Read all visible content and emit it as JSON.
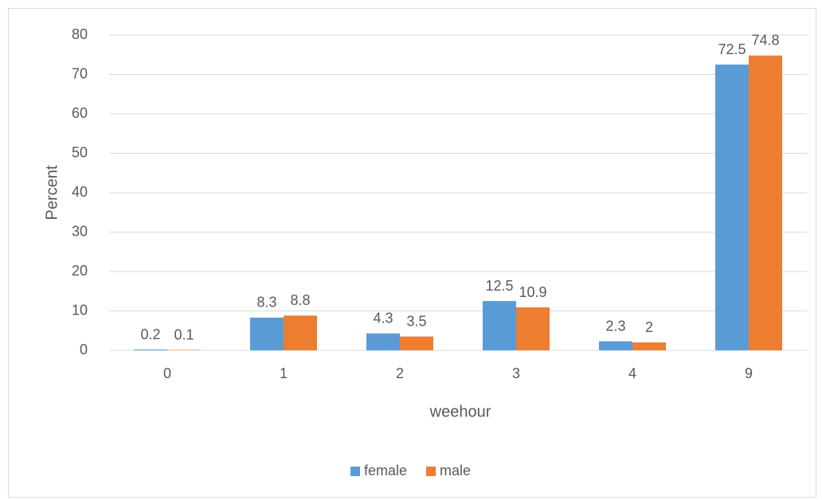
{
  "chart_data": {
    "type": "bar",
    "x_label": "weehour",
    "y_label": "Percent",
    "categories": [
      "0",
      "1",
      "2",
      "3",
      "4",
      "9"
    ],
    "series": [
      {
        "name": "female",
        "color": "#5b9bd5",
        "values": [
          0.2,
          8.3,
          4.3,
          12.5,
          2.3,
          72.5
        ]
      },
      {
        "name": "male",
        "color": "#ed7d31",
        "values": [
          0.1,
          8.8,
          3.5,
          10.9,
          2,
          74.8
        ]
      }
    ],
    "ylim": [
      0,
      80
    ],
    "yticks": [
      0,
      10,
      20,
      30,
      40,
      50,
      60,
      70,
      80
    ],
    "grid": true,
    "legend": "bottom"
  }
}
